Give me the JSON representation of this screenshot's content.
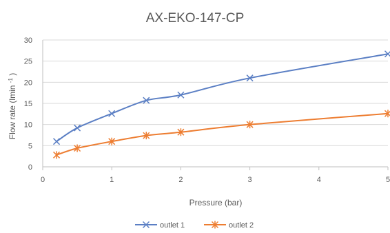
{
  "chart_data": {
    "type": "line",
    "title": "AX-EKO-147-CP",
    "xlabel": "Pressure (bar)",
    "ylabel_parts": {
      "main": "Flow rate (lmin",
      "superscript": "-1",
      "close": ")"
    },
    "x_ticks": [
      "0",
      "1",
      "2",
      "3",
      "4",
      "5"
    ],
    "y_ticks": [
      "0",
      "5",
      "10",
      "15",
      "20",
      "25",
      "30"
    ],
    "xlim": [
      0,
      5
    ],
    "ylim": [
      0,
      30
    ],
    "grid": "horizontal",
    "legend_position": "bottom",
    "series": [
      {
        "name": "outlet 1",
        "color": "#5B7FC4",
        "marker": "x",
        "x": [
          0.2,
          0.5,
          1,
          1.5,
          2,
          3,
          5
        ],
        "y": [
          6,
          9.2,
          12.6,
          15.7,
          17,
          21,
          26.7
        ]
      },
      {
        "name": "outlet 2",
        "color": "#ED7D31",
        "marker": "asterisk",
        "x": [
          0.2,
          0.5,
          1,
          1.5,
          2,
          3,
          5
        ],
        "y": [
          2.8,
          4.4,
          6,
          7.4,
          8.2,
          10,
          12.6
        ]
      }
    ]
  }
}
